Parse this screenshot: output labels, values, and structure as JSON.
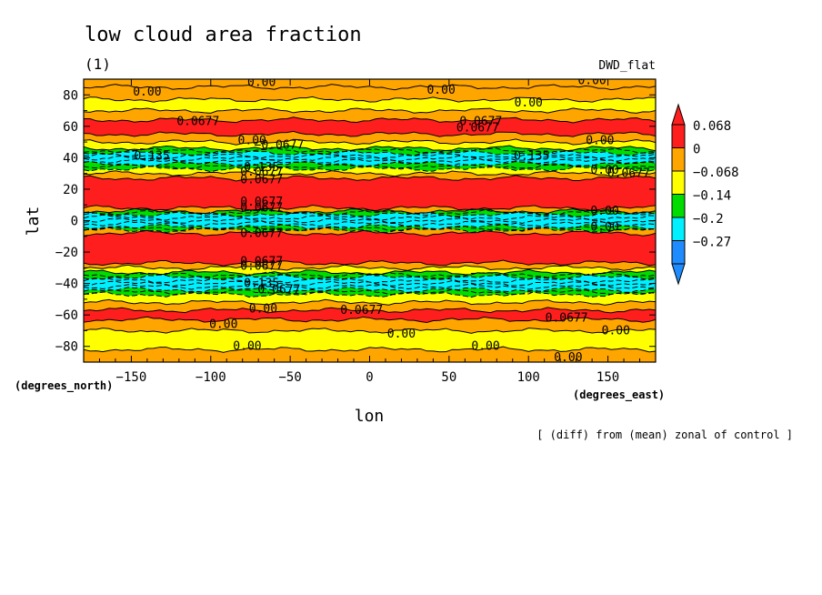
{
  "chart_data": {
    "type": "heatmap",
    "title": "low cloud area fraction",
    "subtitle": "(1)",
    "dataset_label": "DWD_flat",
    "xlabel": "lon",
    "ylabel": "lat",
    "x_units": "(degrees_east)",
    "y_units": "(degrees_north)",
    "footnote": "[ (diff) from (mean) zonal of control ]",
    "xlim": [
      -180,
      180
    ],
    "ylim": [
      -90,
      90
    ],
    "x_ticks": [
      -150,
      -100,
      -50,
      0,
      50,
      100,
      150
    ],
    "y_ticks": [
      -80,
      -60,
      -40,
      -20,
      0,
      20,
      40,
      60,
      80
    ],
    "x_tick_labels": [
      "−150",
      "−100",
      "−50",
      "0",
      "50",
      "100",
      "150"
    ],
    "y_tick_labels": [
      "−80",
      "−60",
      "−40",
      "−20",
      "0",
      "20",
      "40",
      "60",
      "80"
    ],
    "levels": [
      -0.27,
      -0.2,
      -0.14,
      -0.068,
      0,
      0.068
    ],
    "colorbar": {
      "colors": [
        "#1e8cff",
        "#00f0ff",
        "#00dc00",
        "#ffff00",
        "#ffa500",
        "#ff1e1e"
      ],
      "labels": [
        "0.068",
        "0",
        "−0.068",
        "−0.14",
        "−0.2",
        "−0.27"
      ]
    },
    "zonal_bands": [
      {
        "lat": [
          85,
          90
        ],
        "level": 4
      },
      {
        "lat": [
          77,
          85
        ],
        "level": 4
      },
      {
        "lat": [
          70,
          77
        ],
        "level": 3
      },
      {
        "lat": [
          64,
          70
        ],
        "level": 4
      },
      {
        "lat": [
          55,
          64
        ],
        "level": 5
      },
      {
        "lat": [
          50,
          55
        ],
        "level": 4
      },
      {
        "lat": [
          46,
          50
        ],
        "level": 3
      },
      {
        "lat": [
          43,
          46
        ],
        "level": 2
      },
      {
        "lat": [
          36,
          43
        ],
        "level": 1
      },
      {
        "lat": [
          33,
          36
        ],
        "level": 2
      },
      {
        "lat": [
          30,
          33
        ],
        "level": 3
      },
      {
        "lat": [
          27,
          30
        ],
        "level": 4
      },
      {
        "lat": [
          8,
          27
        ],
        "level": 5
      },
      {
        "lat": [
          6,
          8
        ],
        "level": 4
      },
      {
        "lat": [
          4,
          6
        ],
        "level": 2
      },
      {
        "lat": [
          -4,
          4
        ],
        "level": 1
      },
      {
        "lat": [
          -6,
          -4
        ],
        "level": 2
      },
      {
        "lat": [
          -8,
          -6
        ],
        "level": 4
      },
      {
        "lat": [
          -27,
          -8
        ],
        "level": 5
      },
      {
        "lat": [
          -30,
          -27
        ],
        "level": 4
      },
      {
        "lat": [
          -33,
          -30
        ],
        "level": 3
      },
      {
        "lat": [
          -36,
          -33
        ],
        "level": 2
      },
      {
        "lat": [
          -44,
          -36
        ],
        "level": 1
      },
      {
        "lat": [
          -47,
          -44
        ],
        "level": 2
      },
      {
        "lat": [
          -52,
          -47
        ],
        "level": 3
      },
      {
        "lat": [
          -57,
          -52
        ],
        "level": 4
      },
      {
        "lat": [
          -63,
          -57
        ],
        "level": 5
      },
      {
        "lat": [
          -70,
          -63
        ],
        "level": 4
      },
      {
        "lat": [
          -82,
          -70
        ],
        "level": 3
      },
      {
        "lat": [
          -90,
          -82
        ],
        "level": 4
      }
    ],
    "contour_labels": [
      {
        "text": "0.00",
        "lon": -68,
        "lat": 88
      },
      {
        "text": "0.00",
        "lon": -140,
        "lat": 82
      },
      {
        "text": "0.00",
        "lon": 45,
        "lat": 83
      },
      {
        "text": "0.00",
        "lon": 140,
        "lat": 89
      },
      {
        "text": "0.00",
        "lon": 100,
        "lat": 75
      },
      {
        "text": "0.0677",
        "lon": -108,
        "lat": 63
      },
      {
        "text": "0.0677",
        "lon": 70,
        "lat": 63
      },
      {
        "text": "0.0677",
        "lon": 68,
        "lat": 59
      },
      {
        "text": "0.00",
        "lon": -74,
        "lat": 51
      },
      {
        "text": "0.00",
        "lon": 145,
        "lat": 51
      },
      {
        "text": "−0.0677",
        "lon": -57,
        "lat": 48
      },
      {
        "text": "0.135",
        "lon": -137,
        "lat": 41
      },
      {
        "text": "0.135",
        "lon": 102,
        "lat": 41
      },
      {
        "text": "0.00",
        "lon": 148,
        "lat": 32
      },
      {
        "text": "0.0677",
        "lon": 163,
        "lat": 30
      },
      {
        "text": "0.135",
        "lon": -68,
        "lat": 34
      },
      {
        "text": "0.0677",
        "lon": -68,
        "lat": 31
      },
      {
        "text": "0.0677",
        "lon": -68,
        "lat": 26
      },
      {
        "text": "0.0677",
        "lon": -68,
        "lat": 12
      },
      {
        "text": "0.0677",
        "lon": -68,
        "lat": 8
      },
      {
        "text": "0.00",
        "lon": 148,
        "lat": 6
      },
      {
        "text": "0.00",
        "lon": 148,
        "lat": -4
      },
      {
        "text": "0.0677",
        "lon": -68,
        "lat": -8
      },
      {
        "text": "0.0677",
        "lon": -68,
        "lat": -26
      },
      {
        "text": "0.0677",
        "lon": -68,
        "lat": -29
      },
      {
        "text": "0.135",
        "lon": -68,
        "lat": -40
      },
      {
        "text": "0.0677",
        "lon": -57,
        "lat": -44
      },
      {
        "text": "0.0677",
        "lon": -5,
        "lat": -57
      },
      {
        "text": "0.0677",
        "lon": 124,
        "lat": -62
      },
      {
        "text": "0.00",
        "lon": -92,
        "lat": -66
      },
      {
        "text": "0.00",
        "lon": -67,
        "lat": -56
      },
      {
        "text": "0.00",
        "lon": 155,
        "lat": -70
      },
      {
        "text": "0.00",
        "lon": 20,
        "lat": -72
      },
      {
        "text": "0.00",
        "lon": -77,
        "lat": -80
      },
      {
        "text": "0.00",
        "lon": 73,
        "lat": -80
      },
      {
        "text": "0.00",
        "lon": 125,
        "lat": -87
      }
    ]
  }
}
